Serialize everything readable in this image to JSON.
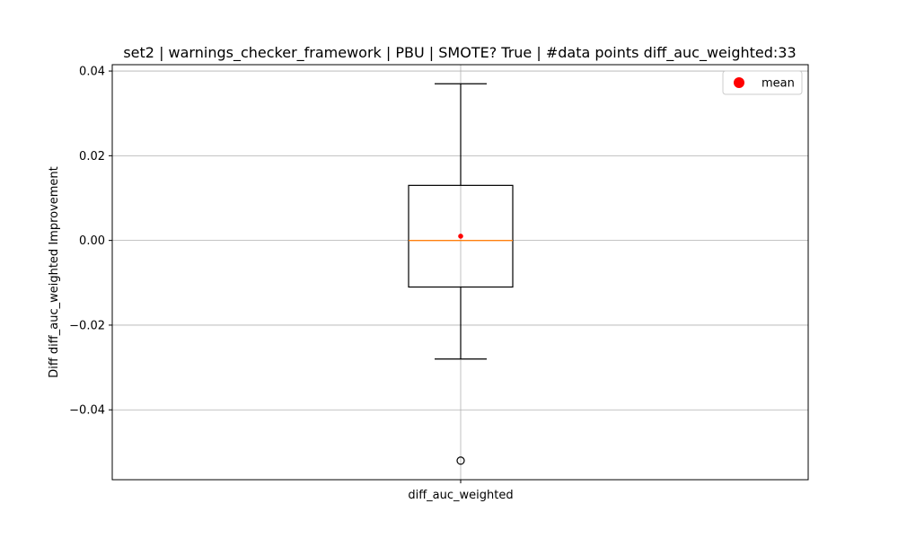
{
  "chart_data": {
    "type": "box",
    "title": "set2 | warnings_checker_framework | PBU | SMOTE? True | #data points diff_auc_weighted:33",
    "xlabel": "",
    "ylabel": "Diff diff_auc_weighted Improvement",
    "categories": [
      "diff_auc_weighted"
    ],
    "ylim": [
      -0.0565,
      0.0415
    ],
    "yticks": [
      -0.04,
      -0.02,
      0.0,
      0.02,
      0.04
    ],
    "ytick_labels": [
      "−0.04",
      "−0.02",
      "0.00",
      "0.02",
      "0.04"
    ],
    "grid": true,
    "legend": {
      "position": "top-right",
      "entries": [
        {
          "label": "mean",
          "color": "#ff0000"
        }
      ]
    },
    "boxes": [
      {
        "category": "diff_auc_weighted",
        "whisker_low": -0.028,
        "q1": -0.011,
        "median": 0.0,
        "q3": 0.013,
        "whisker_high": 0.037,
        "mean": 0.001,
        "outliers": [
          -0.052
        ],
        "n": 33
      }
    ],
    "colors": {
      "box": "#000000",
      "median": "#ff7f0e",
      "mean": "#ff0000",
      "grid": "#b0b0b0"
    }
  }
}
